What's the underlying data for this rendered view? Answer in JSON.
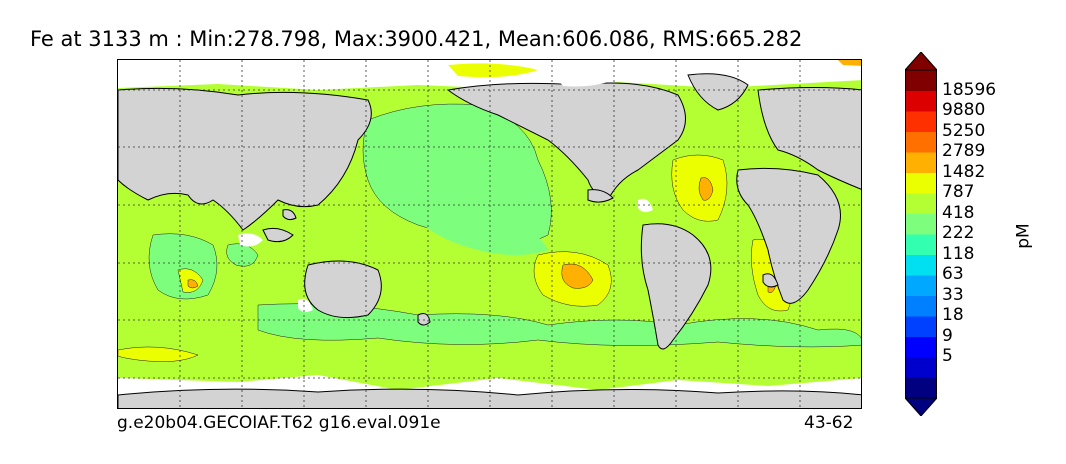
{
  "title": "Fe at 3133 m : Min:278.798, Max:3900.421, Mean:606.086, RMS:665.282",
  "footer": {
    "left": "g.e20b04.GECOIAF.T62 g16.eval.091e",
    "right": "43-62"
  },
  "colorbar": {
    "unit": "pM",
    "labels": [
      "18596",
      "9880",
      "5250",
      "2789",
      "1482",
      "787",
      "418",
      "222",
      "118",
      "63",
      "33",
      "18",
      "9",
      "5"
    ],
    "colors": [
      "#000080",
      "#0000cd",
      "#0000ff",
      "#0040ff",
      "#0080ff",
      "#00a8ff",
      "#00e0f0",
      "#33ffb0",
      "#7dff7d",
      "#b4ff33",
      "#ecff00",
      "#ffb000",
      "#ff7000",
      "#ff3000",
      "#dd0000",
      "#800000"
    ]
  },
  "map": {
    "land_color": "#d3d3d3",
    "missing_color": "#ffffff",
    "grid": "dotted"
  }
}
